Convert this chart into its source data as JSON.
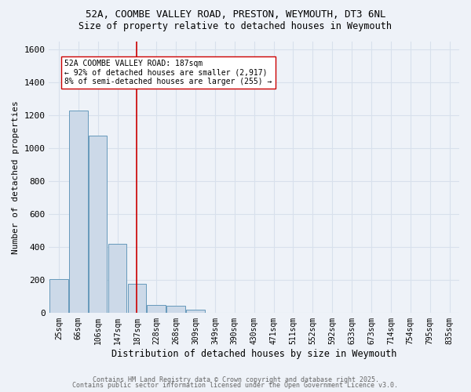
{
  "title1": "52A, COOMBE VALLEY ROAD, PRESTON, WEYMOUTH, DT3 6NL",
  "title2": "Size of property relative to detached houses in Weymouth",
  "xlabel": "Distribution of detached houses by size in Weymouth",
  "ylabel": "Number of detached properties",
  "bin_labels": [
    "25sqm",
    "66sqm",
    "106sqm",
    "147sqm",
    "187sqm",
    "228sqm",
    "268sqm",
    "309sqm",
    "349sqm",
    "390sqm",
    "430sqm",
    "471sqm",
    "511sqm",
    "552sqm",
    "592sqm",
    "633sqm",
    "673sqm",
    "714sqm",
    "754sqm",
    "795sqm",
    "835sqm"
  ],
  "bar_heights": [
    205,
    1230,
    1075,
    420,
    175,
    45,
    40,
    20,
    0,
    0,
    0,
    0,
    0,
    0,
    0,
    0,
    0,
    0,
    0,
    0,
    0
  ],
  "bar_color": "#ccd9e8",
  "bar_edge_color": "#6699bb",
  "vline_x": 4,
  "vline_color": "#cc0000",
  "annotation_text": "52A COOMBE VALLEY ROAD: 187sqm\n← 92% of detached houses are smaller (2,917)\n8% of semi-detached houses are larger (255) →",
  "annotation_box_color": "#ffffff",
  "annotation_box_edge_color": "#cc0000",
  "ylim": [
    0,
    1650
  ],
  "yticks": [
    0,
    200,
    400,
    600,
    800,
    1000,
    1200,
    1400,
    1600
  ],
  "footer1": "Contains HM Land Registry data © Crown copyright and database right 2025.",
  "footer2": "Contains public sector information licensed under the Open Government Licence v3.0.",
  "bg_color": "#eef2f8",
  "grid_color": "#d8e0ec"
}
